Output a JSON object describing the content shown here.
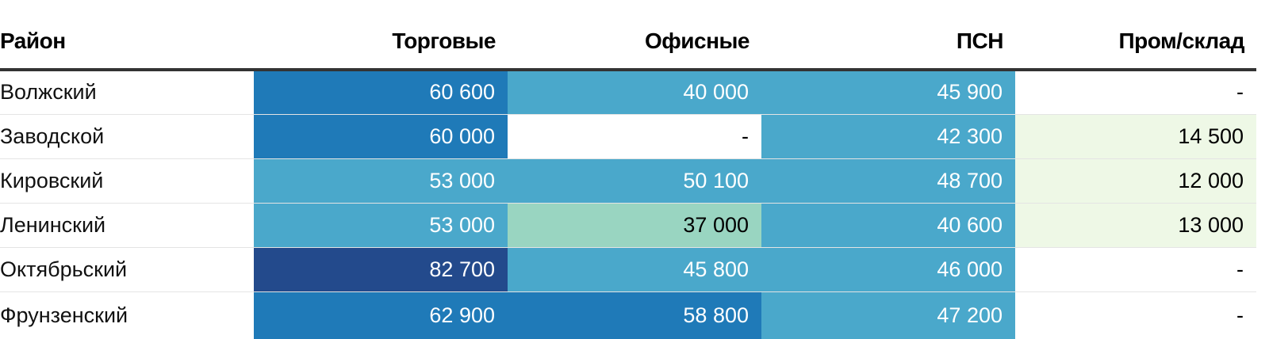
{
  "chart_data": {
    "type": "table",
    "columns": [
      "Район",
      "Торговые",
      "Офисные",
      "ПСН",
      "Пром/склад"
    ],
    "rows": [
      {
        "district": "Волжский",
        "values": [
          "60 600",
          "40 000",
          "45 900",
          "-"
        ]
      },
      {
        "district": "Заводской",
        "values": [
          "60 000",
          "-",
          "42 300",
          "14 500"
        ]
      },
      {
        "district": "Кировский",
        "values": [
          "53 000",
          "50 100",
          "48 700",
          "12 000"
        ]
      },
      {
        "district": "Ленинский",
        "values": [
          "53 000",
          "37 000",
          "40 600",
          "13 000"
        ]
      },
      {
        "district": "Октябрьский",
        "values": [
          "82 700",
          "45 800",
          "46 000",
          "-"
        ]
      },
      {
        "district": "Фрунзенский",
        "values": [
          "62 900",
          "58 800",
          "47 200",
          "-"
        ]
      }
    ],
    "color_scale": {
      "missing": "#ffffff",
      "bins": [
        {
          "max": 20000,
          "bg": "#eef8e6",
          "fg": "#000000"
        },
        {
          "max": 40000,
          "bg": "#99d5c1",
          "fg": "#000000"
        },
        {
          "max": 55000,
          "bg": "#4aa8cb",
          "fg": "#ffffff"
        },
        {
          "max": 70000,
          "bg": "#1f7ab8",
          "fg": "#ffffff"
        },
        {
          "max": 100000,
          "bg": "#234a8c",
          "fg": "#ffffff"
        }
      ]
    }
  }
}
